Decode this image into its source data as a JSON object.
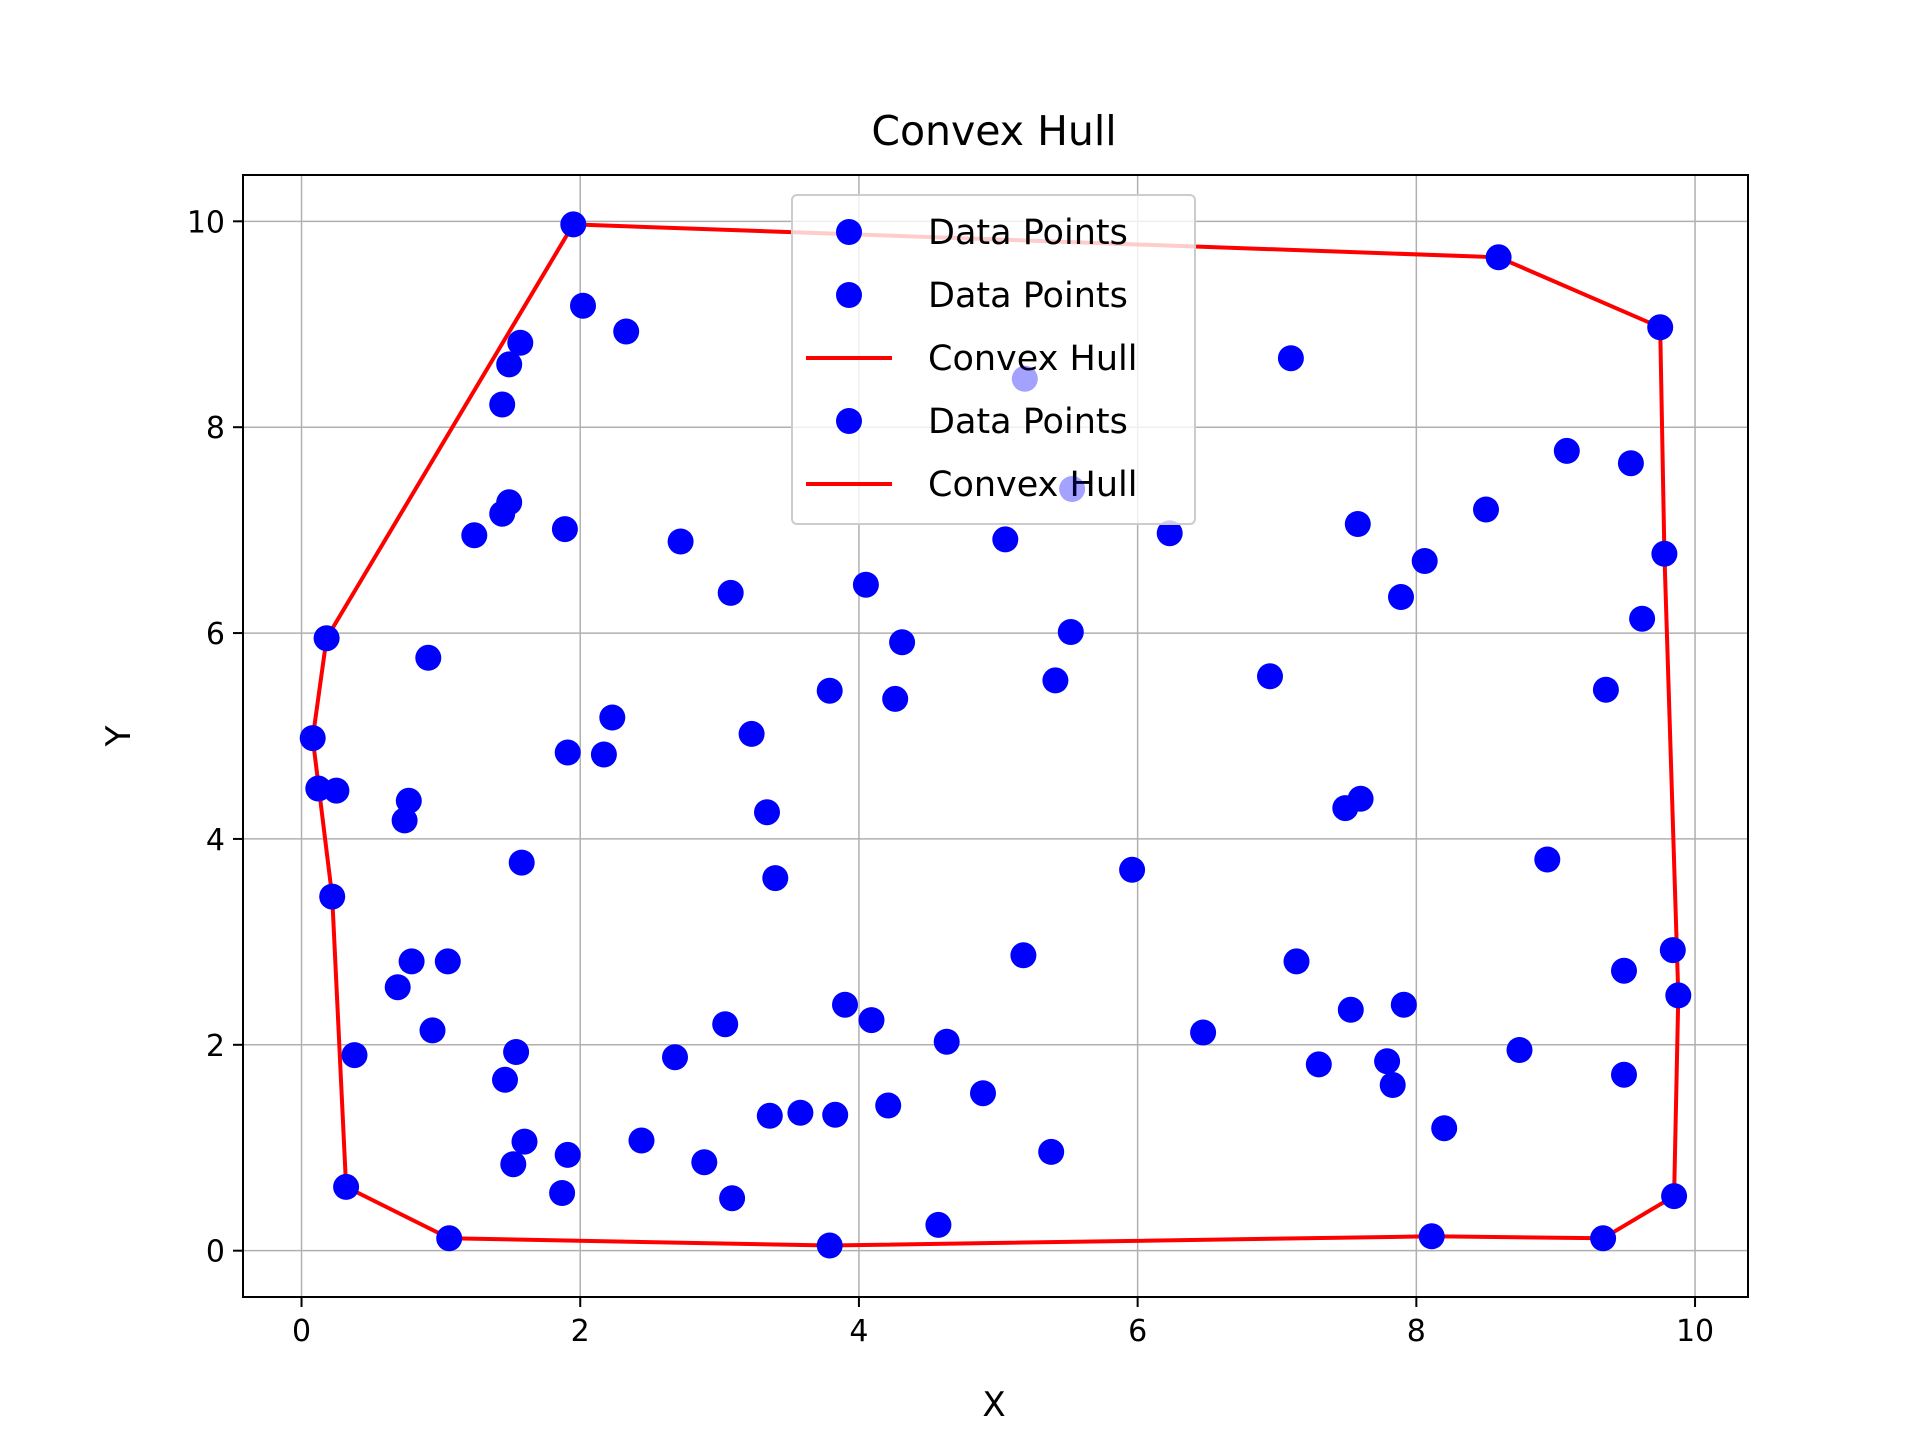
{
  "chart_data": {
    "type": "scatter",
    "title": "Convex Hull",
    "xlabel": "X",
    "ylabel": "Y",
    "xlim": [
      -0.42,
      10.38
    ],
    "ylim": [
      -0.45,
      10.45
    ],
    "xticks": [
      "0",
      "2",
      "4",
      "6",
      "8",
      "10"
    ],
    "yticks": [
      "0",
      "2",
      "4",
      "6",
      "8",
      "10"
    ],
    "grid": true,
    "legend_position": "top-center",
    "colors": {
      "points": "#0000ff",
      "hull": "#ff0000"
    },
    "legend": [
      {
        "label": "Data Points",
        "kind": "marker"
      },
      {
        "label": "Data Points",
        "kind": "marker"
      },
      {
        "label": "Convex Hull",
        "kind": "line"
      },
      {
        "label": "Data Points",
        "kind": "marker"
      },
      {
        "label": "Convex Hull",
        "kind": "line"
      }
    ],
    "points": [
      [
        1.95,
        9.97
      ],
      [
        2.02,
        9.18
      ],
      [
        2.33,
        8.93
      ],
      [
        1.57,
        8.82
      ],
      [
        1.49,
        8.61
      ],
      [
        1.44,
        8.22
      ],
      [
        1.49,
        7.27
      ],
      [
        1.44,
        7.16
      ],
      [
        1.24,
        6.95
      ],
      [
        1.89,
        7.01
      ],
      [
        0.18,
        5.95
      ],
      [
        0.91,
        5.76
      ],
      [
        0.08,
        4.98
      ],
      [
        0.12,
        4.49
      ],
      [
        0.25,
        4.47
      ],
      [
        0.77,
        4.37
      ],
      [
        0.74,
        4.18
      ],
      [
        1.58,
        3.77
      ],
      [
        0.22,
        3.44
      ],
      [
        0.79,
        2.81
      ],
      [
        1.05,
        2.81
      ],
      [
        0.69,
        2.56
      ],
      [
        0.94,
        2.14
      ],
      [
        0.38,
        1.9
      ],
      [
        1.54,
        1.93
      ],
      [
        1.46,
        1.66
      ],
      [
        1.6,
        1.06
      ],
      [
        1.52,
        0.84
      ],
      [
        0.32,
        0.62
      ],
      [
        1.06,
        0.12
      ],
      [
        1.91,
        4.84
      ],
      [
        2.17,
        4.82
      ],
      [
        2.23,
        5.18
      ],
      [
        2.72,
        6.89
      ],
      [
        3.08,
        6.39
      ],
      [
        3.23,
        5.02
      ],
      [
        3.34,
        4.26
      ],
      [
        3.4,
        3.62
      ],
      [
        3.79,
        5.44
      ],
      [
        4.05,
        6.47
      ],
      [
        4.31,
        5.91
      ],
      [
        4.26,
        5.36
      ],
      [
        3.04,
        2.2
      ],
      [
        2.68,
        1.88
      ],
      [
        3.36,
        1.31
      ],
      [
        3.58,
        1.34
      ],
      [
        3.83,
        1.32
      ],
      [
        3.9,
        2.39
      ],
      [
        4.09,
        2.24
      ],
      [
        4.63,
        2.03
      ],
      [
        4.21,
        1.41
      ],
      [
        4.89,
        1.53
      ],
      [
        2.44,
        1.07
      ],
      [
        2.89,
        0.86
      ],
      [
        3.09,
        0.51
      ],
      [
        1.91,
        0.93
      ],
      [
        1.87,
        0.56
      ],
      [
        3.79,
        0.05
      ],
      [
        4.57,
        0.25
      ],
      [
        5.38,
        0.96
      ],
      [
        5.18,
        2.87
      ],
      [
        5.96,
        3.7
      ],
      [
        6.47,
        2.12
      ],
      [
        5.41,
        5.54
      ],
      [
        5.52,
        6.01
      ],
      [
        5.05,
        6.91
      ],
      [
        5.53,
        7.4
      ],
      [
        5.19,
        8.47
      ],
      [
        6.23,
        6.97
      ],
      [
        7.1,
        8.67
      ],
      [
        6.95,
        5.58
      ],
      [
        7.58,
        7.06
      ],
      [
        7.89,
        6.35
      ],
      [
        8.06,
        6.7
      ],
      [
        8.5,
        7.2
      ],
      [
        8.59,
        9.65
      ],
      [
        9.08,
        7.77
      ],
      [
        9.54,
        7.65
      ],
      [
        9.75,
        8.97
      ],
      [
        9.78,
        6.77
      ],
      [
        9.62,
        6.14
      ],
      [
        9.36,
        5.45
      ],
      [
        7.49,
        4.3
      ],
      [
        7.6,
        4.39
      ],
      [
        8.94,
        3.8
      ],
      [
        7.14,
        2.81
      ],
      [
        7.53,
        2.34
      ],
      [
        7.91,
        2.39
      ],
      [
        7.3,
        1.81
      ],
      [
        7.79,
        1.84
      ],
      [
        7.83,
        1.61
      ],
      [
        8.74,
        1.95
      ],
      [
        8.2,
        1.19
      ],
      [
        8.11,
        0.14
      ],
      [
        9.34,
        0.12
      ],
      [
        9.49,
        2.72
      ],
      [
        9.49,
        1.71
      ],
      [
        9.84,
        2.92
      ],
      [
        9.88,
        2.48
      ],
      [
        9.85,
        0.53
      ]
    ],
    "faded_points": [
      [
        5.19,
        8.47
      ],
      [
        5.53,
        7.4
      ]
    ],
    "hull": [
      [
        1.95,
        9.97
      ],
      [
        8.59,
        9.65
      ],
      [
        9.75,
        8.97
      ],
      [
        9.78,
        6.77
      ],
      [
        9.88,
        2.48
      ],
      [
        9.85,
        0.53
      ],
      [
        9.34,
        0.12
      ],
      [
        8.11,
        0.14
      ],
      [
        3.79,
        0.05
      ],
      [
        1.06,
        0.12
      ],
      [
        0.32,
        0.62
      ],
      [
        0.22,
        3.44
      ],
      [
        0.08,
        4.98
      ],
      [
        0.18,
        5.95
      ],
      [
        1.95,
        9.97
      ]
    ]
  }
}
